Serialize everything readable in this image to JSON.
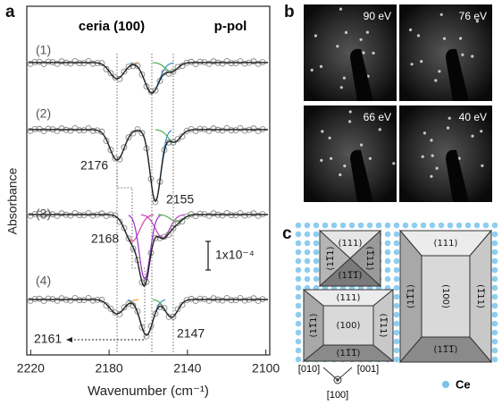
{
  "panel_a": {
    "label": "a",
    "title": "ceria (100)",
    "polarization": "p-pol",
    "y_label": "Absorbance",
    "x_label": "Wavenumber (cm⁻¹)",
    "xlim": [
      2222,
      2098
    ],
    "xticks": [
      2220,
      2180,
      2140,
      2100
    ],
    "traces": [
      "(1)",
      "(2)",
      "(3)",
      "(4)"
    ],
    "annotations": [
      "2176",
      "2155",
      "2168",
      "2161",
      "2147"
    ],
    "scale_bar": "1x10⁻⁴"
  },
  "panel_b": {
    "label": "b",
    "images": [
      "90 eV",
      "76 eV",
      "66 eV",
      "40 eV"
    ]
  },
  "panel_c": {
    "label": "c",
    "small_square": {
      "top": "(111)",
      "left": "(11̅1)",
      "right": "(1̅11)",
      "bottom": "(11̅1̅)"
    },
    "wide_rect": {
      "top": "(111)",
      "center": "(100)",
      "left": "(11̅1)",
      "right": "(1̅11)",
      "bottom": "(11̅1̅)"
    },
    "tall_rect": {
      "top": "(111)",
      "center": "(100)",
      "left": "(11̅1)",
      "right": "(1̅11)",
      "bottom": "(11̅1̅)"
    },
    "directions": [
      "[010]",
      "[001]",
      "[100]"
    ],
    "legend": "Ce"
  }
}
